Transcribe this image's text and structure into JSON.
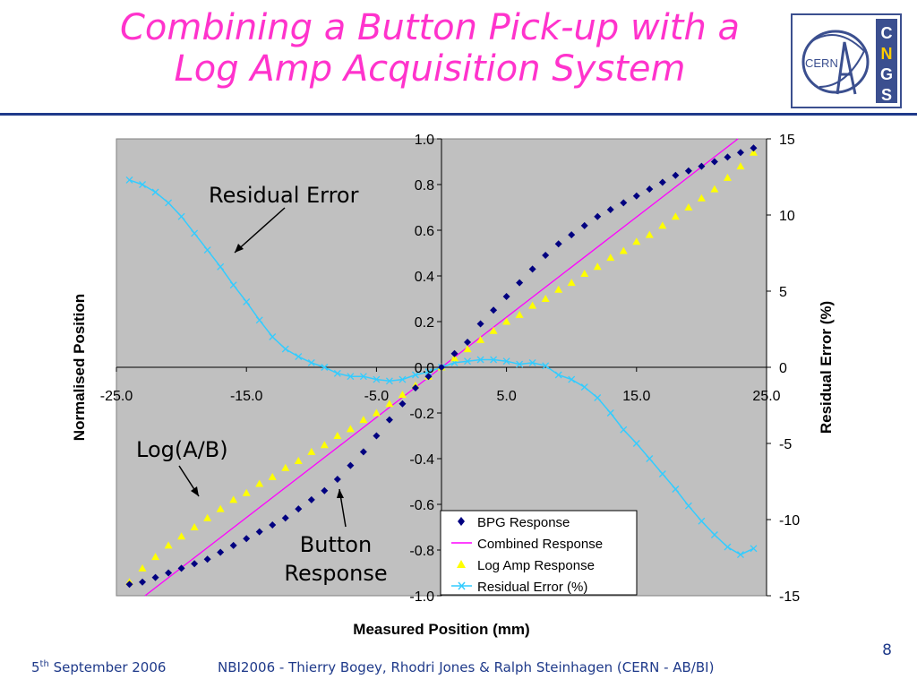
{
  "slide": {
    "title_line1": "Combining a Button Pick-up with a",
    "title_line2": "Log Amp Acquisition System",
    "logo": {
      "left_text": "CERN",
      "letters": [
        "C",
        "N",
        "G",
        "S"
      ]
    },
    "page_number": "8",
    "date_day": "5",
    "date_suffix": "th",
    "date_rest": " September 2006",
    "footer": "NBI2006 - Thierry Bogey, Rhodri Jones & Ralph Steinhagen (CERN - AB/BI)"
  },
  "colors": {
    "title": "#ff33cc",
    "accent": "#1f3a8a",
    "plot_bg": "#c0c0c0",
    "bpg": "#000080",
    "combined": "#ff00ff",
    "logamp": "#ffff00",
    "residual": "#33ccff"
  },
  "chart_data": {
    "type": "scatter",
    "xlabel": "Measured Position (mm)",
    "ylabel": "Normalised Position",
    "y2label": "Residual Error (%)",
    "xlim": [
      -25,
      25
    ],
    "ylim": [
      -1.0,
      1.0
    ],
    "y2lim": [
      -15,
      15
    ],
    "x_ticks": [
      "-25.0",
      "-15.0",
      "-5.0",
      "5.0",
      "15.0",
      "25.0"
    ],
    "x_tick_values": [
      -25,
      -15,
      -5,
      5,
      15,
      25
    ],
    "y_ticks": [
      "1.0",
      "0.8",
      "0.6",
      "0.4",
      "0.2",
      "0.0",
      "-0.2",
      "-0.4",
      "-0.6",
      "-0.8",
      "-1.0"
    ],
    "y_tick_values": [
      1.0,
      0.8,
      0.6,
      0.4,
      0.2,
      0.0,
      -0.2,
      -0.4,
      -0.6,
      -0.8,
      -1.0
    ],
    "y2_ticks": [
      "15",
      "10",
      "5",
      "0",
      "-5",
      "-10",
      "-15"
    ],
    "y2_tick_values": [
      15,
      10,
      5,
      0,
      -5,
      -10,
      -15
    ],
    "legend_position": "bottom-right",
    "series": [
      {
        "name": "BPG Response",
        "marker": "diamond",
        "axis": "left",
        "x": [
          -24,
          -23,
          -22,
          -21,
          -20,
          -19,
          -18,
          -17,
          -16,
          -15,
          -14,
          -13,
          -12,
          -11,
          -10,
          -9,
          -8,
          -7,
          -6,
          -5,
          -4,
          -3,
          -2,
          -1,
          0,
          1,
          2,
          3,
          4,
          5,
          6,
          7,
          8,
          9,
          10,
          11,
          12,
          13,
          14,
          15,
          16,
          17,
          18,
          19,
          20,
          21,
          22,
          23,
          24
        ],
        "y": [
          -0.95,
          -0.94,
          -0.92,
          -0.9,
          -0.88,
          -0.86,
          -0.84,
          -0.81,
          -0.78,
          -0.75,
          -0.72,
          -0.69,
          -0.66,
          -0.62,
          -0.58,
          -0.54,
          -0.49,
          -0.43,
          -0.37,
          -0.3,
          -0.23,
          -0.16,
          -0.09,
          -0.04,
          0.0,
          0.06,
          0.11,
          0.19,
          0.25,
          0.31,
          0.37,
          0.43,
          0.49,
          0.54,
          0.58,
          0.62,
          0.66,
          0.69,
          0.72,
          0.75,
          0.78,
          0.81,
          0.84,
          0.86,
          0.88,
          0.9,
          0.92,
          0.94,
          0.96
        ]
      },
      {
        "name": "Combined Response",
        "marker": "line",
        "axis": "left",
        "x": [
          -22.8,
          22.8
        ],
        "y": [
          -1.0,
          1.0
        ]
      },
      {
        "name": "Log Amp Response",
        "marker": "triangle",
        "axis": "left",
        "x": [
          -24,
          -23,
          -22,
          -21,
          -20,
          -19,
          -18,
          -17,
          -16,
          -15,
          -14,
          -13,
          -12,
          -11,
          -10,
          -9,
          -8,
          -7,
          -6,
          -5,
          -4,
          -3,
          -2,
          -1,
          0,
          1,
          2,
          3,
          4,
          5,
          6,
          7,
          8,
          9,
          10,
          11,
          12,
          13,
          14,
          15,
          16,
          17,
          18,
          19,
          20,
          21,
          22,
          23,
          24
        ],
        "y": [
          -0.94,
          -0.88,
          -0.83,
          -0.78,
          -0.74,
          -0.7,
          -0.66,
          -0.62,
          -0.58,
          -0.55,
          -0.51,
          -0.48,
          -0.44,
          -0.41,
          -0.37,
          -0.34,
          -0.3,
          -0.27,
          -0.23,
          -0.2,
          -0.16,
          -0.12,
          -0.08,
          -0.04,
          0.0,
          0.04,
          0.08,
          0.12,
          0.16,
          0.2,
          0.23,
          0.27,
          0.3,
          0.34,
          0.37,
          0.41,
          0.44,
          0.48,
          0.51,
          0.55,
          0.58,
          0.62,
          0.66,
          0.7,
          0.74,
          0.78,
          0.83,
          0.88,
          0.94
        ]
      },
      {
        "name": "Residual Error (%)",
        "marker": "x-line",
        "axis": "right",
        "x": [
          -24,
          -23,
          -22,
          -21,
          -20,
          -19,
          -18,
          -17,
          -16,
          -15,
          -14,
          -13,
          -12,
          -11,
          -10,
          -9,
          -8,
          -7,
          -6,
          -5,
          -4,
          -3,
          -2,
          -1,
          0,
          1,
          2,
          3,
          4,
          5,
          6,
          7,
          8,
          9,
          10,
          11,
          12,
          13,
          14,
          15,
          16,
          17,
          18,
          19,
          20,
          21,
          22,
          23,
          24
        ],
        "y": [
          12.3,
          12.0,
          11.5,
          10.8,
          9.9,
          8.8,
          7.7,
          6.6,
          5.4,
          4.3,
          3.1,
          2.0,
          1.2,
          0.7,
          0.3,
          0.0,
          -0.4,
          -0.6,
          -0.6,
          -0.8,
          -0.9,
          -0.8,
          -0.5,
          -0.3,
          0.0,
          0.3,
          0.4,
          0.5,
          0.5,
          0.4,
          0.2,
          0.3,
          0.1,
          -0.5,
          -0.8,
          -1.3,
          -2.0,
          -3.0,
          -4.1,
          -5.0,
          -6.0,
          -7.0,
          -8.0,
          -9.1,
          -10.1,
          -11.0,
          -11.8,
          -12.3,
          -11.9
        ]
      }
    ],
    "annotations": [
      "Residual Error",
      "Log(A/B)",
      "Button",
      "Response"
    ]
  }
}
